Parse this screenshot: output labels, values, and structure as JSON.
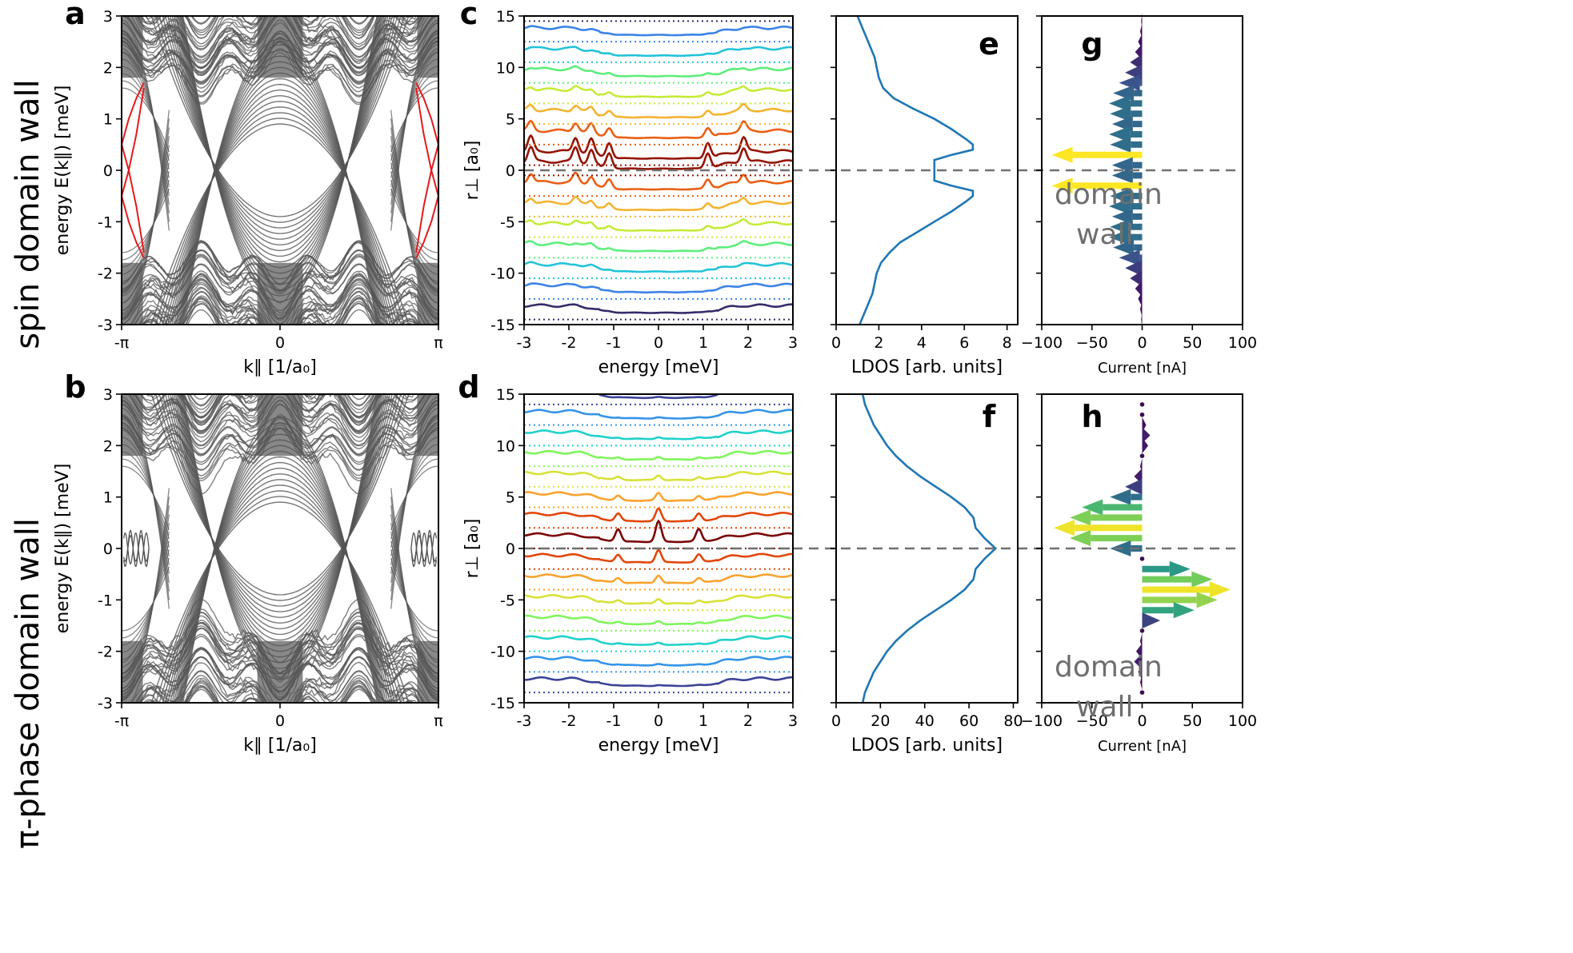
{
  "row_labels": [
    "spin domain wall",
    "π-phase domain wall"
  ],
  "domain_wall_label": [
    "domain",
    "wall"
  ],
  "colors": {
    "band": "#555555",
    "edge_state": "#e41a1c",
    "ldos": "#1f77b4",
    "dashed": "#707070",
    "domain_text": "#6e6e6e"
  },
  "chart_data": [
    {
      "panel": "a",
      "type": "line",
      "xlabel": "k∥  [1/a₀]",
      "ylabel": "energy E(k∥)  [meV]",
      "xticks": [
        "-π",
        "0",
        "π"
      ],
      "yticks": [
        "-3",
        "-2",
        "-1",
        "0",
        "1",
        "2",
        "3"
      ],
      "xlim": [
        -3.1416,
        3.1416
      ],
      "ylim": [
        -3,
        3
      ],
      "edge_states": [
        {
          "k": [
            -3.14,
            -3.0,
            -2.85,
            -2.7
          ],
          "e": [
            0.5,
            1.0,
            1.4,
            1.7
          ]
        },
        {
          "k": [
            -3.14,
            -3.0,
            -2.85,
            -2.7
          ],
          "e": [
            -0.5,
            -1.0,
            -1.4,
            -1.7
          ]
        },
        {
          "k": [
            -3.14,
            -3.0,
            -2.85,
            -2.7
          ],
          "e": [
            0.5,
            0.0,
            -0.7,
            -1.6
          ]
        },
        {
          "k": [
            -3.14,
            -3.0,
            -2.85,
            -2.7
          ],
          "e": [
            -0.5,
            0.0,
            0.7,
            1.6
          ]
        },
        {
          "k": [
            3.14,
            3.0,
            2.85,
            2.7
          ],
          "e": [
            0.5,
            1.0,
            1.4,
            1.7
          ]
        },
        {
          "k": [
            3.14,
            3.0,
            2.85,
            2.7
          ],
          "e": [
            -0.5,
            -1.0,
            -1.4,
            -1.7
          ]
        },
        {
          "k": [
            3.14,
            3.0,
            2.85,
            2.7
          ],
          "e": [
            0.5,
            0.0,
            -0.7,
            -1.6
          ]
        },
        {
          "k": [
            3.14,
            3.0,
            2.85,
            2.7
          ],
          "e": [
            -0.5,
            0.0,
            0.7,
            1.6
          ]
        }
      ]
    },
    {
      "panel": "b",
      "type": "line",
      "xlabel": "k∥  [1/a₀]",
      "ylabel": "energy E(k∥)  [meV]",
      "xticks": [
        "-π",
        "0",
        "π"
      ],
      "yticks": [
        "-3",
        "-2",
        "-1",
        "0",
        "1",
        "2",
        "3"
      ],
      "xlim": [
        -3.1416,
        3.1416
      ],
      "ylim": [
        -3,
        3
      ]
    },
    {
      "panel": "c",
      "type": "line",
      "xlabel": "energy [meV]",
      "ylabel": "r⊥  [a₀]",
      "xticks": [
        "-3",
        "-2",
        "-1",
        "0",
        "1",
        "2",
        "3"
      ],
      "yticks": [
        "-15",
        "-10",
        "-5",
        "0",
        "5",
        "10",
        "15"
      ],
      "xlim": [
        -3,
        3
      ],
      "ylim": [
        -15,
        15
      ],
      "r_values": [
        -14.5,
        -12.5,
        -10.5,
        -8.5,
        -6.5,
        -4.5,
        -2.5,
        -0.5,
        0.5,
        2.5,
        4.5,
        6.5,
        8.5,
        10.5,
        12.5,
        14.5
      ],
      "peak_energies": [
        -2.85,
        -1.85,
        -1.5,
        -1.1,
        1.1,
        1.9
      ]
    },
    {
      "panel": "d",
      "type": "line",
      "xlabel": "energy [meV]",
      "ylabel": "r⊥  [a₀]",
      "xticks": [
        "-3",
        "-2",
        "-1",
        "0",
        "1",
        "2",
        "3"
      ],
      "yticks": [
        "-15",
        "-10",
        "-5",
        "0",
        "5",
        "10",
        "15"
      ],
      "xlim": [
        -3,
        3
      ],
      "ylim": [
        -15,
        15
      ],
      "r_values": [
        -14,
        -12,
        -10,
        -8,
        -6,
        -4,
        -2,
        0,
        2,
        4,
        6,
        8,
        10,
        12,
        14
      ],
      "peak_energies": [
        -0.9,
        0.0,
        0.9
      ]
    },
    {
      "panel": "e",
      "type": "line",
      "xlabel": "LDOS [arb. units]",
      "xticks": [
        "0",
        "2",
        "4",
        "6",
        "8"
      ],
      "xlim": [
        0,
        8.5
      ],
      "ylim": [
        -15,
        15
      ],
      "r": [
        -15,
        -14,
        -13,
        -12,
        -11,
        -10,
        -9,
        -8,
        -7,
        -6,
        -5,
        -4,
        -3,
        -2.5,
        -2,
        -1.5,
        -1,
        0,
        1,
        1.5,
        2,
        2.5,
        3,
        4,
        5,
        6,
        7,
        8,
        9,
        10,
        11,
        12,
        13,
        14,
        15
      ],
      "ldos": [
        1.1,
        1.3,
        1.5,
        1.7,
        1.8,
        1.9,
        2.1,
        2.5,
        3.0,
        3.8,
        4.6,
        5.4,
        6.1,
        6.4,
        6.4,
        5.4,
        4.6,
        4.6,
        4.6,
        5.4,
        6.4,
        6.4,
        6.1,
        5.4,
        4.6,
        3.6,
        2.7,
        2.2,
        2.0,
        1.9,
        1.8,
        1.6,
        1.4,
        1.2,
        1.0
      ]
    },
    {
      "panel": "f",
      "type": "line",
      "xlabel": "LDOS [arb. units]",
      "xticks": [
        "0",
        "20",
        "40",
        "60",
        "80"
      ],
      "xlim": [
        0,
        82
      ],
      "ylim": [
        -15,
        15
      ],
      "r": [
        -15,
        -14,
        -13,
        -12,
        -11,
        -10,
        -9,
        -8,
        -7,
        -6,
        -5,
        -4,
        -3,
        -2,
        -1,
        0,
        1,
        2,
        3,
        4,
        5,
        6,
        7,
        8,
        9,
        10,
        11,
        12,
        13,
        14,
        15
      ],
      "ldos": [
        12,
        13,
        15,
        17,
        20,
        23,
        27,
        32,
        38,
        45,
        52,
        58,
        62,
        63,
        67,
        72,
        67,
        63,
        62,
        58,
        52,
        45,
        38,
        32,
        27,
        23,
        20,
        17,
        15,
        13,
        12
      ]
    },
    {
      "panel": "g",
      "type": "quiver",
      "xlabel": "Current [nA]",
      "xticks": [
        "−100",
        "−50",
        "0",
        "50",
        "100"
      ],
      "xlim": [
        -100,
        100
      ],
      "ylim": [
        -15,
        15
      ],
      "r": [
        14.5,
        13.5,
        12.5,
        11.5,
        10.5,
        9.5,
        8.5,
        7.5,
        6.5,
        5.5,
        4.5,
        3.5,
        2.5,
        1.5,
        0.5,
        -0.5,
        -1.5,
        -2.5,
        -3.5,
        -4.5,
        -5.5,
        -6.5,
        -7.5,
        -8.5,
        -9.5,
        -10.5,
        -11.5,
        -12.5,
        -13.5,
        -14.5
      ],
      "current": [
        -1,
        -2,
        -4,
        -7,
        -12,
        -17,
        -23,
        -29,
        -33,
        -32,
        -30,
        -33,
        -32,
        -90,
        -30,
        -30,
        -90,
        -32,
        -33,
        -30,
        -32,
        -33,
        -29,
        -23,
        -17,
        -12,
        -7,
        -4,
        -2,
        -1
      ]
    },
    {
      "panel": "h",
      "type": "quiver",
      "xlabel": "Current [nA]",
      "xticks": [
        "−100",
        "−50",
        "0",
        "50",
        "100"
      ],
      "xlim": [
        -100,
        100
      ],
      "ylim": [
        -15,
        15
      ],
      "r": [
        14,
        13,
        12,
        11,
        10,
        9,
        8,
        7,
        6,
        5,
        4,
        3,
        2,
        1,
        0,
        -1,
        -2,
        -3,
        -4,
        -5,
        -6,
        -7,
        -8,
        -9,
        -10,
        -11,
        -12,
        -13,
        -14
      ],
      "current": [
        0,
        0,
        4,
        8,
        6,
        0,
        -2,
        -8,
        -17,
        -32,
        -60,
        -72,
        -88,
        -72,
        -32,
        0,
        48,
        70,
        88,
        75,
        52,
        18,
        0,
        -2,
        -6,
        -8,
        -4,
        -2,
        0
      ]
    }
  ]
}
